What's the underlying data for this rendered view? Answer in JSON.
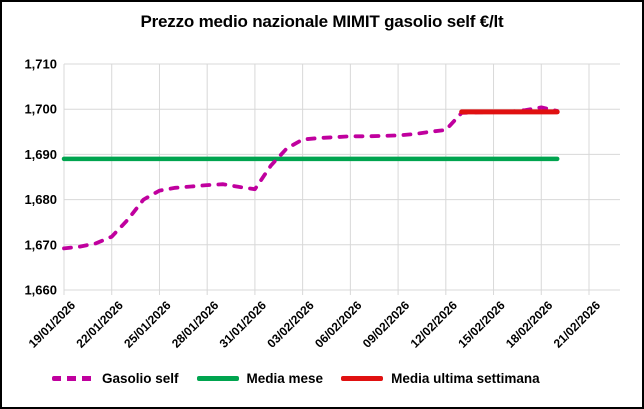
{
  "chart_data": {
    "type": "line",
    "title": "Prezzo medio nazionale MIMIT gasolio self €/lt",
    "grid_color": "#D8D8D8",
    "legend_position": "bottom",
    "y_axis": {
      "min": 1660,
      "max": 1710,
      "step": 10,
      "tick_labels": [
        "1,710",
        "1,700",
        "1,690",
        "1,680",
        "1,670",
        "1,660"
      ]
    },
    "x_axis": {
      "tick_every_days": 3,
      "total_days": 33,
      "tick_labels": [
        "19/01/2026",
        "22/01/2026",
        "25/01/2026",
        "28/01/2026",
        "31/01/2026",
        "03/02/2026",
        "06/02/2026",
        "09/02/2026",
        "12/02/2026",
        "15/02/2026",
        "18/02/2026",
        "21/02/2026"
      ]
    },
    "series": [
      {
        "name": "Gasolio self",
        "color": "#C0009E",
        "dash": true,
        "width": 3.8,
        "z": 2,
        "start_day": 0,
        "start_date": "19/01/2026",
        "end_date": "19/02/2026",
        "values": [
          1669.2,
          1669.6,
          1670.3,
          1671.8,
          1675.5,
          1680.0,
          1682.0,
          1682.6,
          1682.9,
          1683.2,
          1683.4,
          1682.8,
          1682.3,
          1687.5,
          1691.3,
          1693.3,
          1693.6,
          1693.8,
          1694.0,
          1694.0,
          1694.1,
          1694.2,
          1694.5,
          1695.0,
          1695.4,
          1699.2,
          1699.3,
          1699.4,
          1699.4,
          1699.8,
          1700.4,
          1699.6
        ]
      },
      {
        "name": "Media mese",
        "color": "#00A44F",
        "dash": false,
        "width": 4.5,
        "z": 1,
        "value": 1689.0,
        "points": [
          [
            0,
            1689.0
          ],
          [
            31,
            1689.0
          ]
        ]
      },
      {
        "name": "Media ultima settimana",
        "color": "#E01111",
        "dash": false,
        "width": 5,
        "z": 3,
        "value": 1699.4,
        "points": [
          [
            25,
            1699.4
          ],
          [
            31,
            1699.4
          ]
        ]
      }
    ]
  }
}
